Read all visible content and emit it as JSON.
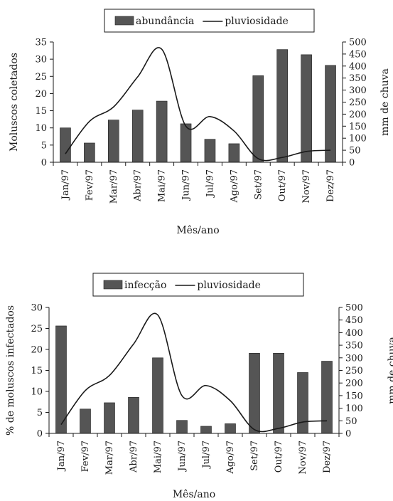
{
  "chart_data": [
    {
      "type": "bar",
      "categories": [
        "Jan/97",
        "Fev/97",
        "Mar/97",
        "Abr/97",
        "Mai/97",
        "Jun/97",
        "Jul/97",
        "Ago/97",
        "Set/97",
        "Out/97",
        "Nov/97",
        "Dez/97"
      ],
      "series": [
        {
          "name": "abundância",
          "type": "bar",
          "axis": "left",
          "values": [
            10,
            5.6,
            12.3,
            15.2,
            17.8,
            11.2,
            6.7,
            5.4,
            25.2,
            32.8,
            31.3,
            28.2
          ]
        },
        {
          "name": "pluviosidade",
          "type": "line",
          "axis": "right",
          "values": [
            35,
            170,
            230,
            355,
            470,
            150,
            190,
            130,
            15,
            20,
            45,
            50
          ]
        }
      ],
      "xlabel": "Mês/ano",
      "ylabel": "Moluscos coletados",
      "ylabel_right": "mm de chuva",
      "ylim": [
        0,
        35
      ],
      "yticks": [
        0,
        5,
        10,
        15,
        20,
        25,
        30,
        35
      ],
      "ylim_right": [
        0,
        500
      ],
      "yticks_right": [
        0,
        50,
        100,
        150,
        200,
        250,
        300,
        350,
        400,
        450,
        500
      ],
      "legend": "top-center",
      "grid": false
    },
    {
      "type": "bar",
      "categories": [
        "Jan/97",
        "Fev/97",
        "Mar/97",
        "Abr/97",
        "Mai/97",
        "Jun/97",
        "Jul/97",
        "Ago/97",
        "Set/97",
        "Out/97",
        "Nov/97",
        "Dez/97"
      ],
      "series": [
        {
          "name": "infecção",
          "type": "bar",
          "axis": "left",
          "values": [
            25.6,
            5.8,
            7.3,
            8.6,
            18,
            3.1,
            1.7,
            2.3,
            19.1,
            19.1,
            14.5,
            17.2
          ]
        },
        {
          "name": "pluviosidade",
          "type": "line",
          "axis": "right",
          "values": [
            35,
            170,
            230,
            355,
            470,
            150,
            190,
            130,
            15,
            20,
            45,
            50
          ]
        }
      ],
      "xlabel": "Mês/ano",
      "ylabel": "% de moluscos infectados",
      "ylabel_right": "mm de chuva",
      "ylim": [
        0,
        30
      ],
      "yticks": [
        0,
        5,
        10,
        15,
        20,
        25,
        30
      ],
      "ylim_right": [
        0,
        500
      ],
      "yticks_right": [
        0,
        50,
        100,
        150,
        200,
        250,
        300,
        350,
        400,
        450,
        500
      ],
      "legend": "top-center",
      "grid": false
    }
  ],
  "colors": {
    "bar": "#555555",
    "line": "#1a1a1a",
    "axis": "#1a1a1a"
  }
}
